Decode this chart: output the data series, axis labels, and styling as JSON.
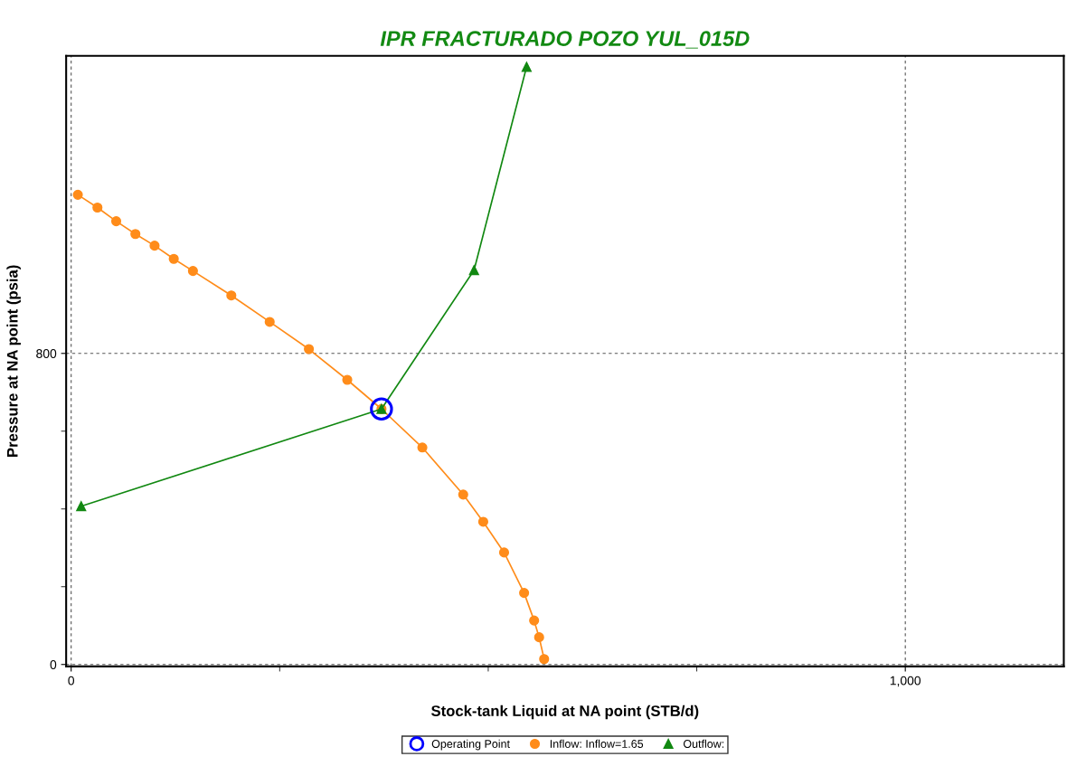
{
  "chart_data": {
    "type": "line",
    "title": "IPR FRACTURADO POZO YUL_015D",
    "xlabel": "Stock-tank Liquid at NA point (STB/d)",
    "ylabel": "Pressure at NA point (psia)",
    "xlim": [
      -6,
      1190
    ],
    "ylim": [
      -5,
      1565
    ],
    "xticks": [
      0,
      {
        "value": 250,
        "label": null
      },
      {
        "value": 500,
        "label": null
      },
      {
        "value": 750,
        "label": null
      },
      {
        "value": 1000,
        "label": "1,000"
      }
    ],
    "yticks": [
      0,
      {
        "value": 200,
        "label": null
      },
      {
        "value": 400,
        "label": null
      },
      {
        "value": 600,
        "label": null
      },
      800
    ],
    "grid": true,
    "legend": "bottom",
    "series": [
      {
        "name": "Operating Point",
        "type": "scatter",
        "marker": "circle",
        "color": "#0000ff",
        "x": [
          372
        ],
        "values": [
          657
        ]
      },
      {
        "name": "Inflow: Inflow=1.65",
        "marker": "circle",
        "color": "#ff8c1a",
        "x": [
          8,
          31.5,
          54,
          77,
          100,
          123,
          146,
          192,
          238,
          285,
          331,
          372,
          421,
          470,
          494,
          519,
          543,
          555,
          561,
          567
        ],
        "values": [
          1208,
          1175,
          1140,
          1107,
          1077,
          1043,
          1012,
          949,
          881,
          811,
          732,
          657,
          558,
          437,
          367,
          288,
          184,
          113,
          70,
          14
        ]
      },
      {
        "name": "Outflow:",
        "marker": "triangle",
        "color": "#118811",
        "x": [
          12,
          372,
          483,
          546
        ],
        "values": [
          407,
          657,
          1014,
          1537
        ]
      }
    ]
  }
}
